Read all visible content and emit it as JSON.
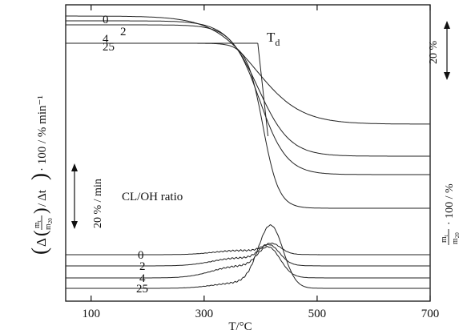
{
  "chart_data": {
    "type": "line",
    "xlabel": "T/°C",
    "xlim": [
      55,
      700
    ],
    "x_ticks": [
      100,
      300,
      500,
      700
    ],
    "ylabel_left": "(Δ(m_t/m_20)/Δt)·100/% min⁻¹",
    "ylabel_right": "m_t/m_20 · 100/%",
    "ylabel_left_parts": {
      "open": "(",
      "delta": "Δ",
      "lparen": "(",
      "num": "m",
      "num_sub": "t",
      "den": "m",
      "den_sub": "20",
      "rparen": ")",
      "rest": "/ Δt",
      "close": ")",
      "tail": "· 100 / % min⁻¹"
    },
    "ylabel_right_parts": {
      "num": "m",
      "num_sub": "t",
      "den": "m",
      "den_sub": "20",
      "rest": "· 100 / %"
    },
    "scale_bar_mass": "20 %",
    "scale_bar_rate": "20 % / min",
    "legend_title": "CL/OH ratio",
    "annotation": {
      "text": "T",
      "sub": "d"
    },
    "tg_series": [
      {
        "name": "0",
        "start": 100,
        "end": 78,
        "mid": 392,
        "width": 40
      },
      {
        "name": "2",
        "start": 100,
        "end": 64,
        "mid": 396,
        "width": 28
      },
      {
        "name": "4",
        "start": 100,
        "end": 55,
        "mid": 398,
        "width": 24
      },
      {
        "name": "25",
        "start": 100,
        "end": 34,
        "mid": 404,
        "width": 14
      }
    ],
    "dtg_series": [
      {
        "name": "0",
        "baseline": 0,
        "peak_T": 420,
        "peak": 7
      },
      {
        "name": "2",
        "baseline": 0,
        "peak_T": 416,
        "peak": 13
      },
      {
        "name": "4",
        "baseline": 0,
        "peak_T": 415,
        "peak": 19
      },
      {
        "name": "25",
        "baseline": 0,
        "peak_T": 418,
        "peak": 45
      }
    ]
  }
}
